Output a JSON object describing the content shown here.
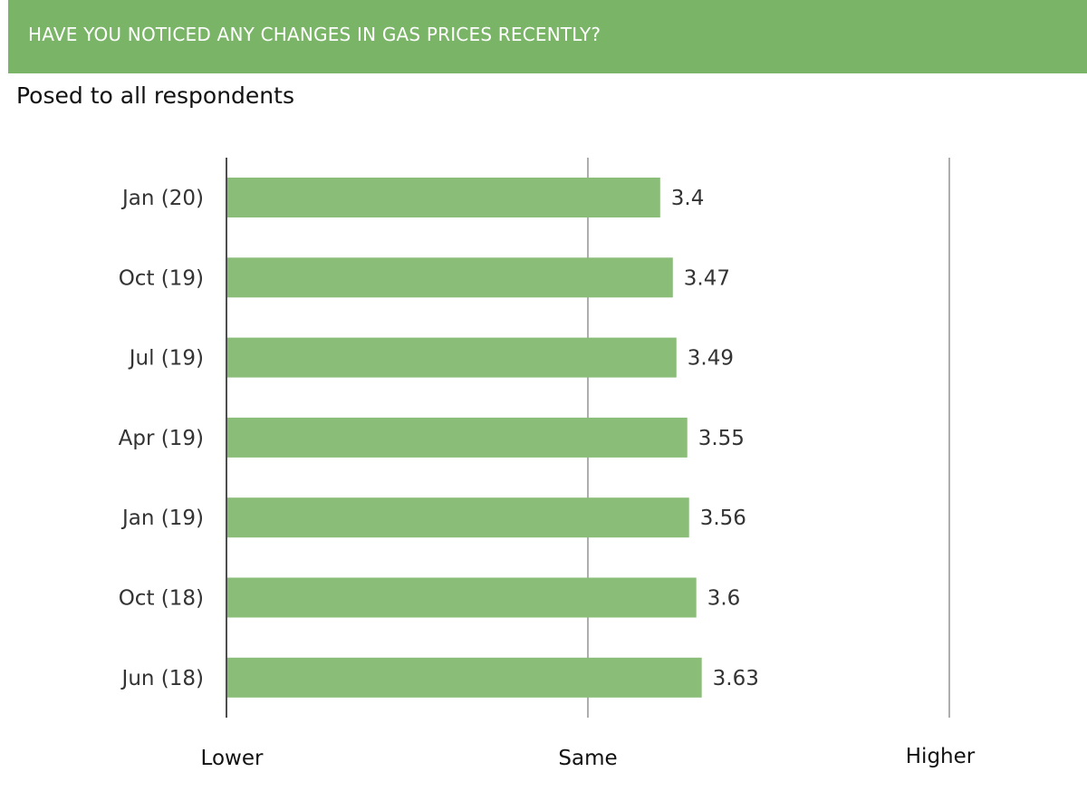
{
  "header": {
    "title": "HAVE YOU NOTICED ANY CHANGES IN GAS PRICES RECENTLY?",
    "band_color": "#7ab567"
  },
  "subtitle": "Posed to all respondents",
  "chart_data": {
    "type": "bar",
    "orientation": "horizontal",
    "categories": [
      "Jan (20)",
      "Oct (19)",
      "Jul (19)",
      "Apr (19)",
      "Jan (19)",
      "Oct (18)",
      "Jun (18)"
    ],
    "values": [
      3.4,
      3.47,
      3.49,
      3.55,
      3.56,
      3.6,
      3.63
    ],
    "xlim": [
      1,
      5
    ],
    "x_tick_values": [
      1,
      3,
      5
    ],
    "x_tick_labels": [
      "Lower",
      "Same",
      "Higher"
    ],
    "bar_color": "#8abd78",
    "grid": true,
    "legend": "none",
    "data_labels": true
  }
}
